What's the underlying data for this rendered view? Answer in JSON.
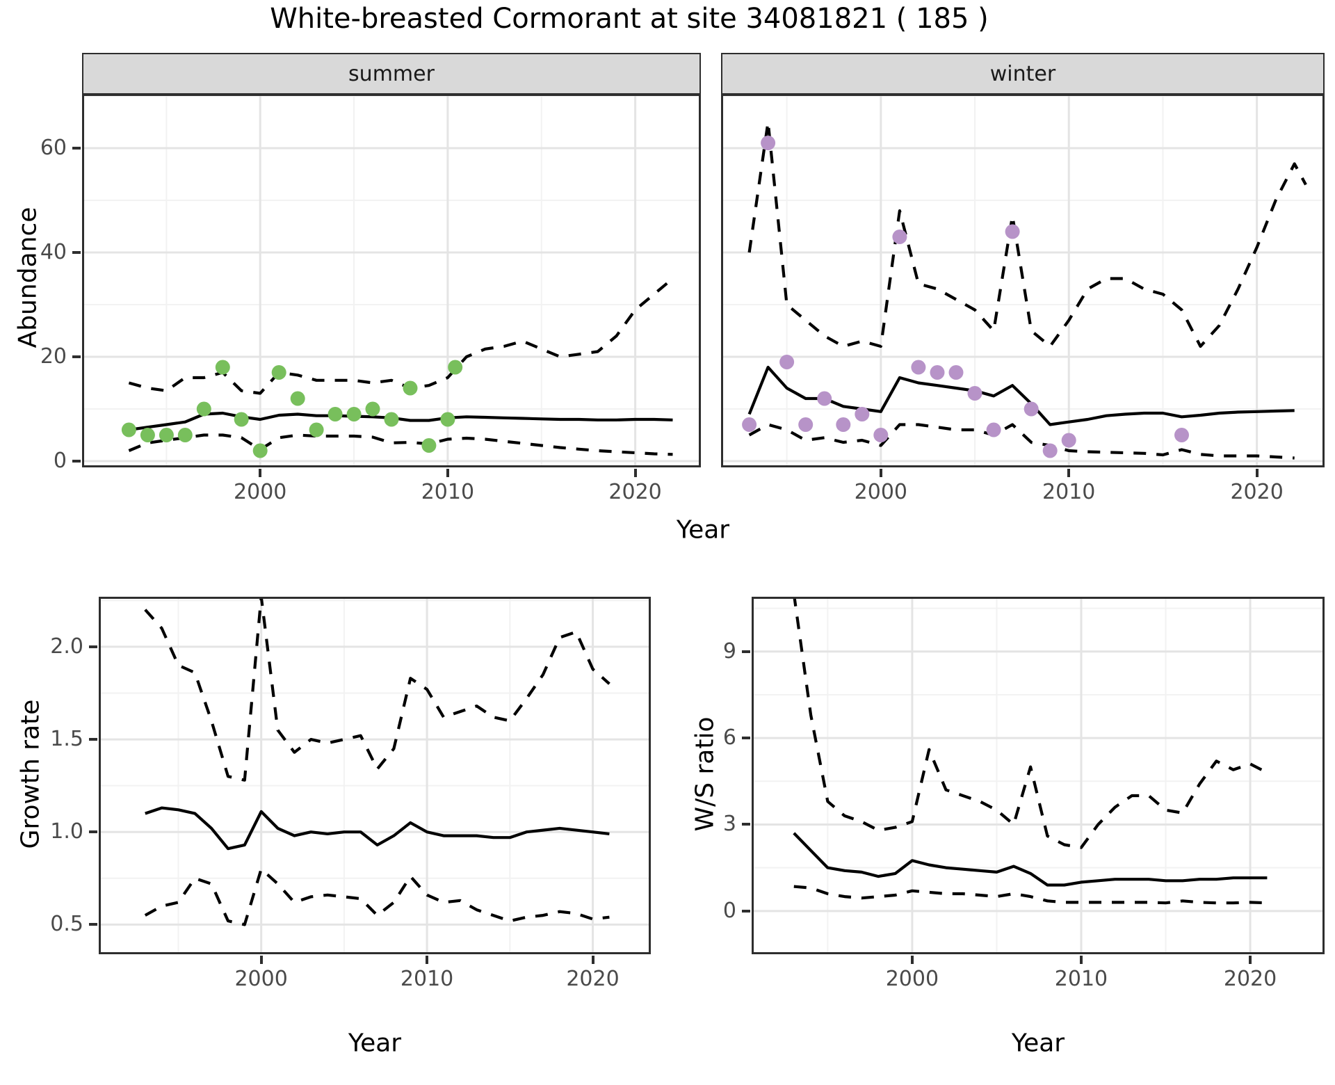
{
  "title": "White-breasted Cormorant at site 34081821 ( 185 )",
  "colors": {
    "series_line": "#000000",
    "summer_points": "#78bf5c",
    "winter_points": "#b793c8",
    "strip_bg": "#d9d9d9",
    "panel_border": "#2e2e2e",
    "grid_major": "#e4e4e4",
    "grid_minor": "#f2f2f2",
    "tick_text": "#4a4a4a",
    "text": "#1a1a1a"
  },
  "chart_data": [
    {
      "id": "abundance_summer",
      "type": "line",
      "facet": "summer",
      "xlabel": "Year",
      "ylabel": "Abundance",
      "legend": "none",
      "x_axis": {
        "lim": [
          1990.5,
          2023.5
        ],
        "ticks": [
          2000,
          2010,
          2020
        ],
        "tick_labels": [
          "2000",
          "2010",
          "2020"
        ],
        "minor": [
          1995,
          2005,
          2015
        ]
      },
      "y_axis": {
        "lim": [
          -1.2,
          70.4
        ],
        "ticks": [
          0,
          20,
          40,
          60
        ],
        "tick_labels": [
          "0",
          "20",
          "40",
          "60"
        ],
        "minor": [
          10,
          30,
          50,
          70
        ]
      },
      "series": [
        {
          "name": "upper_95ci",
          "style": "dashed",
          "x": [
            1993,
            1994,
            1995,
            1996,
            1997,
            1998,
            1999,
            2000,
            2001,
            2002,
            2003,
            2004,
            2005,
            2006,
            2007,
            2008,
            2009,
            2010,
            2011,
            2012,
            2013,
            2014,
            2015,
            2016,
            2017,
            2018,
            2019,
            2020,
            2021,
            2022
          ],
          "y": [
            15,
            14,
            13.5,
            16,
            16,
            17,
            13.5,
            13,
            17,
            16.5,
            15.5,
            15.5,
            15.5,
            15,
            15.5,
            14,
            14.5,
            16,
            20,
            21.5,
            22,
            23,
            21.5,
            20,
            20.5,
            21,
            24,
            29,
            32,
            35
          ]
        },
        {
          "name": "estimate",
          "style": "solid",
          "x": [
            1993,
            1994,
            1995,
            1996,
            1997,
            1998,
            1999,
            2000,
            2001,
            2002,
            2003,
            2004,
            2005,
            2006,
            2007,
            2008,
            2009,
            2010,
            2011,
            2012,
            2013,
            2014,
            2015,
            2016,
            2017,
            2018,
            2019,
            2020,
            2021,
            2022
          ],
          "y": [
            6,
            6.5,
            7,
            7.5,
            9,
            9.2,
            8.5,
            8,
            8.8,
            9,
            8.7,
            8.7,
            8.6,
            8.5,
            8.3,
            7.8,
            7.8,
            8.3,
            8.5,
            8.4,
            8.3,
            8.2,
            8.1,
            8,
            8,
            7.9,
            7.9,
            8,
            8,
            7.9
          ]
        },
        {
          "name": "lower_95ci",
          "style": "dashed",
          "x": [
            1993,
            1994,
            1995,
            1996,
            1997,
            1998,
            1999,
            2000,
            2001,
            2002,
            2003,
            2004,
            2005,
            2006,
            2007,
            2008,
            2009,
            2010,
            2011,
            2012,
            2013,
            2014,
            2015,
            2016,
            2017,
            2018,
            2019,
            2020,
            2021,
            2022
          ],
          "y": [
            2,
            3.5,
            4,
            4.5,
            5,
            5,
            4.5,
            2.2,
            4.5,
            5,
            4.8,
            4.8,
            4.8,
            4.6,
            3.5,
            3.6,
            3.3,
            4.2,
            4.4,
            4.2,
            3.8,
            3.4,
            3,
            2.6,
            2.3,
            2,
            1.8,
            1.6,
            1.4,
            1.3
          ]
        },
        {
          "name": "observed_counts",
          "style": "points",
          "color": "#78bf5c",
          "x": [
            1993,
            1994,
            1995,
            1996,
            1997,
            1998,
            1999,
            2000,
            2001,
            2002,
            2003,
            2004,
            2005,
            2006,
            2007,
            2008,
            2009,
            2010,
            2010.4
          ],
          "y": [
            6,
            5,
            5,
            5,
            10,
            18,
            8,
            2,
            17,
            12,
            6,
            9,
            9,
            10,
            8,
            14,
            3,
            8,
            18
          ]
        }
      ]
    },
    {
      "id": "abundance_winter",
      "type": "line",
      "facet": "winter",
      "xlabel": "Year",
      "ylabel": "Abundance",
      "legend": "none",
      "x_axis": {
        "lim": [
          1991.5,
          2023.6
        ],
        "ticks": [
          2000,
          2010,
          2020
        ],
        "tick_labels": [
          "2000",
          "2010",
          "2020"
        ],
        "minor": [
          1995,
          2005,
          2015
        ]
      },
      "y_axis": {
        "lim": [
          -1.2,
          70.4
        ],
        "ticks": [
          0,
          20,
          40,
          60
        ],
        "tick_labels": [
          "0",
          "20",
          "40",
          "60"
        ],
        "minor": [
          10,
          30,
          50,
          70
        ]
      },
      "series": [
        {
          "name": "upper_95ci",
          "style": "dashed",
          "x": [
            1993,
            1994,
            1995,
            1996,
            1997,
            1998,
            1999,
            2000,
            2001,
            2002,
            2003,
            2004,
            2005,
            2006,
            2007,
            2008,
            2009,
            2010,
            2011,
            2012,
            2013,
            2014,
            2015,
            2016,
            2017,
            2018,
            2019,
            2020,
            2021,
            2022,
            2022.6
          ],
          "y": [
            40,
            65,
            30,
            27,
            24,
            22,
            23,
            22,
            48,
            34,
            33,
            31,
            29,
            25,
            47,
            25,
            22,
            27,
            33,
            35,
            35,
            33,
            32,
            29,
            22,
            26,
            33,
            41,
            50,
            57,
            53
          ]
        },
        {
          "name": "estimate",
          "style": "solid",
          "x": [
            1993,
            1994,
            1995,
            1996,
            1997,
            1998,
            1999,
            2000,
            2001,
            2002,
            2003,
            2004,
            2005,
            2006,
            2007,
            2008,
            2009,
            2010,
            2011,
            2012,
            2013,
            2014,
            2015,
            2016,
            2017,
            2018,
            2019,
            2020,
            2021,
            2022
          ],
          "y": [
            9,
            18,
            14,
            12,
            12,
            10.5,
            10,
            9.5,
            16,
            15,
            14.5,
            14,
            13.5,
            12.5,
            14.5,
            11,
            7,
            7.5,
            8,
            8.7,
            9,
            9.2,
            9.2,
            8.5,
            8.8,
            9.2,
            9.4,
            9.5,
            9.6,
            9.7
          ]
        },
        {
          "name": "lower_95ci",
          "style": "dashed",
          "x": [
            1993,
            1994,
            1995,
            1996,
            1997,
            1998,
            1999,
            2000,
            2001,
            2002,
            2003,
            2004,
            2005,
            2006,
            2007,
            2008,
            2009,
            2010,
            2011,
            2012,
            2013,
            2014,
            2015,
            2016,
            2017,
            2018,
            2019,
            2020,
            2021,
            2022
          ],
          "y": [
            5,
            7,
            6,
            4,
            4.5,
            3.6,
            4,
            3,
            7,
            7,
            6.5,
            6,
            6,
            5,
            7,
            3.6,
            3,
            2,
            1.8,
            1.7,
            1.6,
            1.5,
            1.2,
            2.2,
            1.3,
            1,
            1,
            1,
            0.8,
            0.6
          ]
        },
        {
          "name": "observed_counts",
          "style": "points",
          "color": "#b793c8",
          "x": [
            1993,
            1994,
            1995,
            1996,
            1997,
            1998,
            1999,
            2000,
            2001,
            2002,
            2003,
            2004,
            2005,
            2006,
            2007,
            2008,
            2009,
            2010,
            2016
          ],
          "y": [
            7,
            61,
            19,
            7,
            12,
            7,
            9,
            5,
            43,
            18,
            17,
            17,
            13,
            6,
            44,
            10,
            2,
            4,
            5
          ]
        }
      ]
    },
    {
      "id": "growth_rate",
      "type": "line",
      "xlabel": "Year",
      "ylabel": "Growth rate",
      "legend": "none",
      "x_axis": {
        "lim": [
          1990.2,
          2023.5
        ],
        "ticks": [
          2000,
          2010,
          2020
        ],
        "tick_labels": [
          "2000",
          "2010",
          "2020"
        ],
        "minor": [
          1995,
          2005,
          2015
        ]
      },
      "y_axis": {
        "lim": [
          0.34,
          2.27
        ],
        "ticks": [
          0.5,
          1.0,
          1.5,
          2.0
        ],
        "tick_labels": [
          "0.5",
          "1.0",
          "1.5",
          "2.0"
        ],
        "minor": [
          0.75,
          1.25,
          1.75,
          2.25
        ]
      },
      "series": [
        {
          "name": "upper_95ci",
          "style": "dashed",
          "x": [
            1993,
            1994,
            1995,
            1996,
            1997,
            1998,
            1999,
            2000,
            2001,
            2002,
            2003,
            2004,
            2005,
            2006,
            2007,
            2008,
            2009,
            2010,
            2011,
            2012,
            2013,
            2014,
            2015,
            2016,
            2017,
            2018,
            2019,
            2020,
            2021
          ],
          "y": [
            2.2,
            2.1,
            1.9,
            1.86,
            1.6,
            1.3,
            1.28,
            2.27,
            1.55,
            1.43,
            1.5,
            1.48,
            1.5,
            1.52,
            1.34,
            1.45,
            1.83,
            1.77,
            1.62,
            1.65,
            1.68,
            1.62,
            1.6,
            1.72,
            1.85,
            2.05,
            2.08,
            1.88,
            1.8
          ]
        },
        {
          "name": "estimate",
          "style": "solid",
          "x": [
            1993,
            1994,
            1995,
            1996,
            1997,
            1998,
            1999,
            2000,
            2001,
            2002,
            2003,
            2004,
            2005,
            2006,
            2007,
            2008,
            2009,
            2010,
            2011,
            2012,
            2013,
            2014,
            2015,
            2016,
            2017,
            2018,
            2019,
            2020,
            2021
          ],
          "y": [
            1.1,
            1.13,
            1.12,
            1.1,
            1.02,
            0.91,
            0.93,
            1.11,
            1.02,
            0.98,
            1,
            0.99,
            1,
            1,
            0.93,
            0.98,
            1.05,
            1,
            0.98,
            0.98,
            0.98,
            0.97,
            0.97,
            1,
            1.01,
            1.02,
            1.01,
            1,
            0.99
          ]
        },
        {
          "name": "lower_95ci",
          "style": "dashed",
          "x": [
            1993,
            1994,
            1995,
            1996,
            1997,
            1998,
            1999,
            2000,
            2001,
            2002,
            2003,
            2004,
            2005,
            2006,
            2007,
            2008,
            2009,
            2010,
            2011,
            2012,
            2013,
            2014,
            2015,
            2016,
            2017,
            2018,
            2019,
            2020,
            2021
          ],
          "y": [
            0.55,
            0.6,
            0.62,
            0.75,
            0.72,
            0.52,
            0.5,
            0.8,
            0.72,
            0.62,
            0.65,
            0.66,
            0.65,
            0.64,
            0.55,
            0.62,
            0.76,
            0.66,
            0.62,
            0.63,
            0.58,
            0.55,
            0.52,
            0.54,
            0.55,
            0.57,
            0.56,
            0.53,
            0.54
          ]
        }
      ]
    },
    {
      "id": "ws_ratio",
      "type": "line",
      "xlabel": "Year",
      "ylabel": "W/S ratio",
      "legend": "none",
      "x_axis": {
        "lim": [
          1990.5,
          2024.4
        ],
        "ticks": [
          2000,
          2010,
          2020
        ],
        "tick_labels": [
          "2000",
          "2010",
          "2020"
        ],
        "minor": [
          1995,
          2005,
          2015
        ]
      },
      "y_axis": {
        "lim": [
          -1.5,
          10.9
        ],
        "ticks": [
          0,
          3,
          6,
          9
        ],
        "tick_labels": [
          "0",
          "3",
          "6",
          "9"
        ],
        "minor": [
          1.5,
          4.5,
          7.5,
          10.5
        ]
      },
      "series": [
        {
          "name": "upper_95ci",
          "style": "dashed",
          "x": [
            1993,
            1994,
            1995,
            1996,
            1997,
            1998,
            1999,
            2000,
            2001,
            2002,
            2003,
            2004,
            2005,
            2006,
            2007,
            2008,
            2009,
            2010,
            2011,
            2012,
            2013,
            2014,
            2015,
            2016,
            2017,
            2018,
            2019,
            2020,
            2021
          ],
          "y": [
            11,
            6.8,
            3.8,
            3.3,
            3.1,
            2.8,
            2.9,
            3.1,
            5.6,
            4.2,
            4,
            3.8,
            3.5,
            3,
            5,
            2.6,
            2.3,
            2.2,
            3,
            3.6,
            4,
            4,
            3.5,
            3.4,
            4.4,
            5.2,
            4.9,
            5.1,
            4.8
          ]
        },
        {
          "name": "estimate",
          "style": "solid",
          "x": [
            1993,
            1994,
            1995,
            1996,
            1997,
            1998,
            1999,
            2000,
            2001,
            2002,
            2003,
            2004,
            2005,
            2006,
            2007,
            2008,
            2009,
            2010,
            2011,
            2012,
            2013,
            2014,
            2015,
            2016,
            2017,
            2018,
            2019,
            2020,
            2021
          ],
          "y": [
            2.7,
            2.1,
            1.5,
            1.4,
            1.35,
            1.2,
            1.3,
            1.75,
            1.6,
            1.5,
            1.45,
            1.4,
            1.35,
            1.55,
            1.3,
            0.9,
            0.9,
            1,
            1.05,
            1.1,
            1.1,
            1.1,
            1.05,
            1.05,
            1.1,
            1.1,
            1.15,
            1.15,
            1.15
          ]
        },
        {
          "name": "lower_95ci",
          "style": "dashed",
          "x": [
            1993,
            1994,
            1995,
            1996,
            1997,
            1998,
            1999,
            2000,
            2001,
            2002,
            2003,
            2004,
            2005,
            2006,
            2007,
            2008,
            2009,
            2010,
            2011,
            2012,
            2013,
            2014,
            2015,
            2016,
            2017,
            2018,
            2019,
            2020,
            2021
          ],
          "y": [
            0.85,
            0.8,
            0.6,
            0.5,
            0.45,
            0.5,
            0.55,
            0.7,
            0.65,
            0.6,
            0.6,
            0.55,
            0.5,
            0.6,
            0.5,
            0.35,
            0.3,
            0.3,
            0.3,
            0.3,
            0.3,
            0.3,
            0.28,
            0.35,
            0.3,
            0.28,
            0.28,
            0.3,
            0.28
          ]
        }
      ]
    }
  ]
}
